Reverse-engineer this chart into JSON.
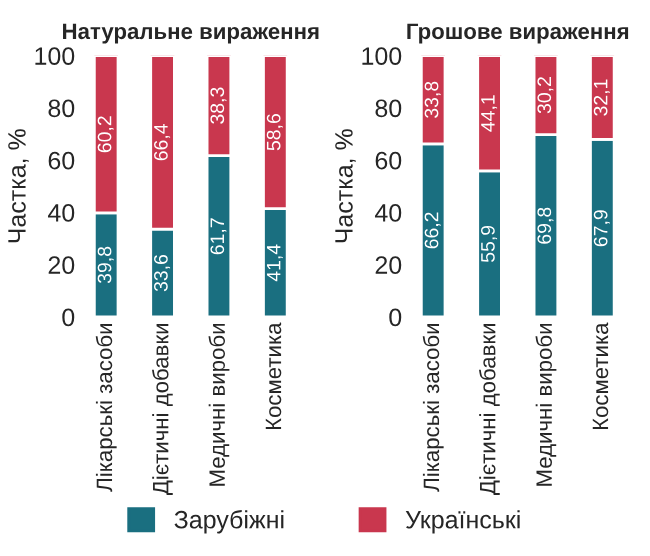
{
  "chart_data": [
    {
      "type": "bar",
      "stacked": true,
      "title": "Натуральне вираження",
      "ylabel": "Частка, %",
      "categories": [
        "Лікарські засоби",
        "Дієтичні добавки",
        "Медичні вироби",
        "Косметика"
      ],
      "ylim": [
        0,
        100
      ],
      "yticks": [
        0,
        20,
        40,
        60,
        80,
        100
      ],
      "legend": "bottom",
      "series": [
        {
          "name": "Зарубіжні",
          "color": "#1a6f80",
          "values": [
            39.8,
            33.6,
            61.7,
            41.4
          ],
          "value_labels": [
            "39,8",
            "33,6",
            "61,7",
            "41,4"
          ]
        },
        {
          "name": "Українські",
          "color": "#c9374e",
          "values": [
            60.2,
            66.4,
            38.3,
            58.6
          ],
          "value_labels": [
            "60,2",
            "66,4",
            "38,3",
            "58,6"
          ]
        }
      ]
    },
    {
      "type": "bar",
      "stacked": true,
      "title": "Грошове вираження",
      "ylabel": "Частка, %",
      "categories": [
        "Лікарські засоби",
        "Дієтичні добавки",
        "Медичні вироби",
        "Косметика"
      ],
      "ylim": [
        0,
        100
      ],
      "yticks": [
        0,
        20,
        40,
        60,
        80,
        100
      ],
      "series": [
        {
          "name": "Зарубіжні",
          "color": "#1a6f80",
          "values": [
            66.2,
            55.9,
            69.8,
            67.9
          ],
          "value_labels": [
            "66,2",
            "55,9",
            "69,8",
            "67,9"
          ]
        },
        {
          "name": "Українські",
          "color": "#c9374e",
          "values": [
            33.8,
            44.1,
            30.2,
            32.1
          ],
          "value_labels": [
            "33,8",
            "44,1",
            "30,2",
            "32,1"
          ]
        }
      ]
    }
  ]
}
